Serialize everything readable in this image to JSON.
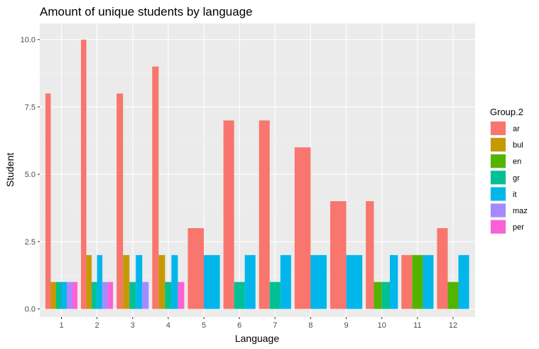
{
  "chart_data": {
    "type": "bar",
    "title": "Amount of unique students by language",
    "xlabel": "Language",
    "ylabel": "Student",
    "ylim": [
      -0.3,
      10.6
    ],
    "y_ticks": [
      "0.0",
      "2.5",
      "5.0",
      "7.5",
      "10.0"
    ],
    "categories": [
      "1",
      "2",
      "3",
      "4",
      "5",
      "6",
      "7",
      "8",
      "9",
      "10",
      "11",
      "12"
    ],
    "legend": {
      "title": "Group.2",
      "placement": "right"
    },
    "grid": true,
    "series": [
      {
        "name": "ar",
        "color": "#F8766D",
        "values": [
          8,
          10,
          8,
          9,
          3,
          7,
          7,
          6,
          4,
          4,
          2,
          3
        ]
      },
      {
        "name": "bul",
        "color": "#C49A00",
        "values": [
          1,
          2,
          2,
          2,
          null,
          null,
          null,
          null,
          null,
          null,
          null,
          null
        ]
      },
      {
        "name": "en",
        "color": "#53B400",
        "values": [
          null,
          null,
          null,
          null,
          null,
          null,
          null,
          null,
          null,
          1,
          2,
          1
        ]
      },
      {
        "name": "gr",
        "color": "#00C094",
        "values": [
          1,
          1,
          1,
          1,
          null,
          1,
          1,
          null,
          null,
          1,
          null,
          null
        ]
      },
      {
        "name": "it",
        "color": "#00B6EB",
        "values": [
          1,
          2,
          2,
          2,
          2,
          2,
          2,
          2,
          2,
          2,
          2,
          2
        ]
      },
      {
        "name": "maz",
        "color": "#A58AFF",
        "values": [
          1,
          1,
          1,
          null,
          null,
          null,
          null,
          null,
          null,
          null,
          null,
          null
        ]
      },
      {
        "name": "per",
        "color": "#FB61D7",
        "values": [
          1,
          1,
          null,
          1,
          null,
          null,
          null,
          null,
          null,
          null,
          null,
          null
        ]
      }
    ]
  }
}
